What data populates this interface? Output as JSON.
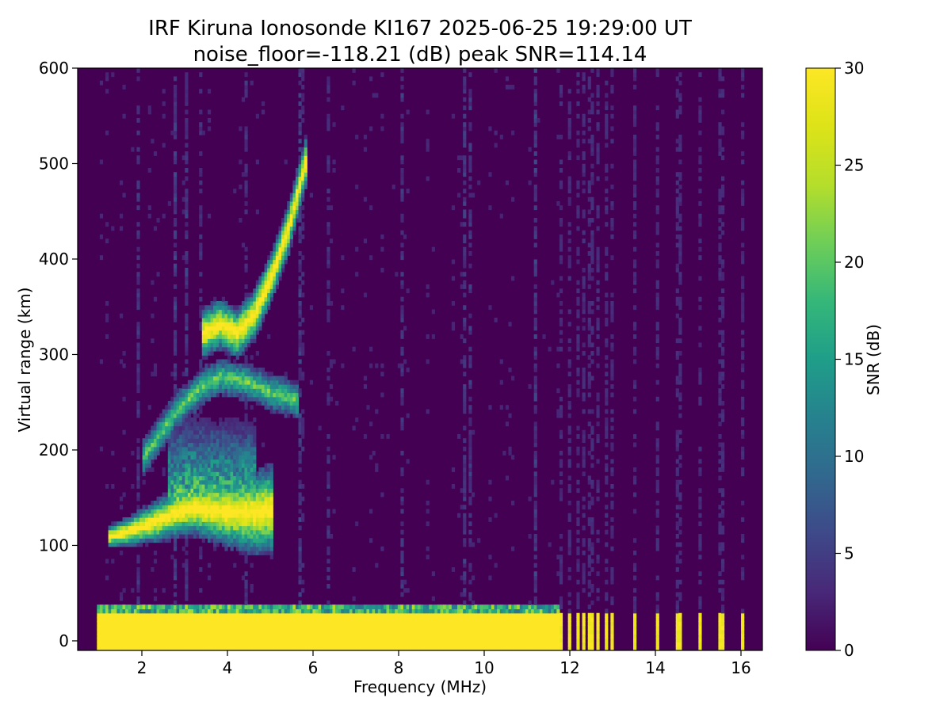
{
  "chart_data": {
    "type": "heatmap",
    "title_line1": "IRF Kiruna Ionosonde KI167 2025-06-25 19:29:00  UT",
    "title_line2": "noise_floor=-118.21 (dB) peak SNR=114.14",
    "xlabel": "Frequency (MHz)",
    "ylabel": "Virtual range (km)",
    "colorbar_label": "SNR (dB)",
    "colormap": "viridis",
    "xlim": [
      0.5,
      16.5
    ],
    "ylim": [
      -10,
      600
    ],
    "clim": [
      0,
      30
    ],
    "x_ticks": [
      2,
      4,
      6,
      8,
      10,
      12,
      14,
      16
    ],
    "y_ticks": [
      0,
      100,
      200,
      300,
      400,
      500,
      600
    ],
    "colorbar_ticks": [
      0,
      5,
      10,
      15,
      20,
      25,
      30
    ],
    "data_freq_range_mhz": [
      0.95,
      16.2
    ],
    "sweep_stop_mhz": 11.7,
    "ground_echo_top_km": 25,
    "high_band_spot_freqs_mhz": [
      11.75,
      11.95,
      12.15,
      12.3,
      12.45,
      12.6,
      12.8,
      12.95,
      13.5,
      14.0,
      14.5,
      15.0,
      15.5,
      16.0
    ],
    "echo_traces": [
      {
        "layer": "E/Es",
        "freq_mhz": [
          1.2,
          1.8,
          2.4,
          2.8,
          3.2,
          3.6,
          4.0,
          4.6,
          5.0
        ],
        "range_km": [
          107,
          115,
          125,
          133,
          138,
          135,
          133,
          132,
          135
        ]
      },
      {
        "layer": "F-low",
        "freq_mhz": [
          2.0,
          2.8,
          3.4,
          3.8,
          4.4,
          5.0,
          5.6
        ],
        "range_km": [
          190,
          240,
          265,
          275,
          270,
          258,
          250
        ]
      },
      {
        "layer": "F",
        "freq_mhz": [
          3.4,
          3.8,
          4.2,
          4.6,
          5.0,
          5.4,
          5.8
        ],
        "range_km": [
          320,
          330,
          320,
          340,
          380,
          430,
          500
        ]
      }
    ]
  }
}
